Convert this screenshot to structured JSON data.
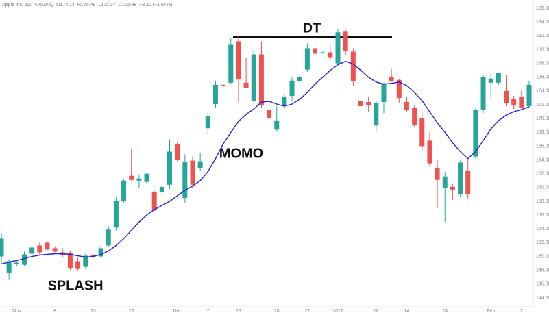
{
  "chart_data": {
    "type": "candlestick",
    "title": "Apple Inc, 1D, NASDAQ",
    "legend_values": [
      "O174.14",
      "H175.48",
      "L172.37",
      "C172.98",
      "−3.30 (−1.87%)"
    ],
    "annotations": [
      "DT",
      "MOMO",
      "SPLASH"
    ],
    "categories": [
      null,
      null,
      "Nov",
      null,
      null,
      null,
      null,
      "8",
      null,
      null,
      null,
      null,
      "15",
      null,
      null,
      null,
      null,
      "22",
      null,
      null,
      null,
      null,
      null,
      "Dec",
      null,
      null,
      null,
      "7",
      null,
      null,
      null,
      "13",
      null,
      null,
      null,
      null,
      "20",
      null,
      null,
      null,
      "27",
      null,
      null,
      null,
      "2022",
      null,
      null,
      null,
      null,
      "10",
      null,
      null,
      null,
      "14",
      null,
      null,
      null,
      null,
      "24",
      null,
      null,
      null,
      null,
      null,
      "Feb",
      null,
      null,
      null,
      "7",
      null
    ],
    "up_color": "#26a69a",
    "down_color": "#ef5350",
    "open": [
      150.0,
      147.6,
      148.9,
      148.8,
      150.4,
      151.6,
      152.0,
      151.2,
      150.6,
      150.5,
      149.3,
      148.5,
      150.2,
      150.0,
      151.6,
      154.2,
      158.0,
      161.7,
      161.0,
      160.8,
      159.3,
      159.3,
      160.4,
      166.3,
      158.5,
      163.9,
      162.8,
      168.6,
      172.1,
      174.9,
      175.2,
      181.2,
      175.2,
      172.6,
      179.3,
      171.3,
      168.4,
      172.0,
      173.3,
      175.4,
      177.1,
      180.2,
      179.5,
      179.6,
      178.0,
      182.6,
      179.7,
      172.6,
      172.4,
      169.0,
      172.4,
      176.0,
      175.6,
      172.4,
      171.6,
      170.1,
      166.8,
      162.8,
      159.9,
      160.1,
      159.0,
      162.4,
      164.5,
      171.3,
      175.2,
      175.2,
      174.0,
      172.8,
      173.2,
      171.8
    ],
    "high": [
      153.4,
      149.6,
      149.4,
      150.7,
      151.8,
      152.0,
      152.2,
      151.5,
      151.2,
      150.8,
      149.8,
      150.4,
      150.4,
      151.5,
      154.4,
      158.7,
      161.2,
      165.5,
      161.9,
      162.1,
      159.5,
      160.3,
      167.0,
      166.6,
      164.8,
      164.5,
      165.0,
      171.0,
      175.5,
      175.4,
      181.7,
      181.9,
      178.8,
      180.0,
      181.2,
      172.3,
      171.8,
      173.6,
      176.0,
      176.2,
      180.9,
      181.6,
      179.7,
      180.5,
      183.0,
      182.9,
      180.2,
      174.5,
      173.2,
      172.5,
      175.2,
      177.2,
      175.8,
      173.1,
      172.0,
      171.0,
      168.0,
      164.0,
      162.3,
      160.6,
      163.9,
      164.2,
      171.5,
      176.3,
      176.5,
      176.6,
      176.3,
      173.3,
      174.1,
      175.5
    ],
    "low": [
      149.0,
      146.6,
      148.6,
      148.6,
      149.9,
      150.3,
      150.8,
      150.6,
      149.9,
      148.0,
      147.9,
      148.2,
      149.7,
      149.8,
      151.4,
      153.8,
      157.7,
      161.0,
      159.9,
      160.5,
      156.6,
      158.9,
      159.8,
      163.8,
      157.8,
      159.8,
      162.4,
      167.8,
      171.5,
      174.4,
      175.0,
      172.3,
      174.4,
      172.0,
      171.6,
      170.0,
      168.1,
      171.4,
      172.6,
      175.2,
      176.8,
      179.1,
      179.4,
      178.5,
      177.7,
      179.2,
      174.7,
      171.8,
      171.0,
      168.2,
      170.8,
      175.3,
      172.2,
      171.0,
      168.8,
      165.2,
      163.0,
      157.0,
      155.0,
      158.2,
      158.6,
      158.3,
      164.2,
      170.8,
      172.8,
      174.9,
      171.8,
      171.4,
      171.6,
      171.6
    ],
    "close": [
      152.6,
      149.3,
      149.1,
      150.3,
      151.3,
      150.6,
      151.0,
      150.7,
      150.2,
      148.3,
      148.2,
      150.1,
      149.9,
      151.2,
      153.9,
      158.0,
      161.0,
      161.1,
      161.3,
      162.0,
      156.8,
      160.1,
      165.2,
      164.0,
      163.7,
      160.4,
      163.8,
      170.4,
      174.9,
      174.7,
      180.8,
      175.7,
      174.4,
      179.3,
      172.0,
      170.1,
      169.7,
      173.2,
      175.5,
      176.0,
      180.2,
      179.4,
      179.6,
      178.9,
      182.5,
      179.8,
      175.4,
      171.8,
      171.9,
      172.3,
      175.1,
      175.4,
      173.0,
      171.2,
      169.1,
      166.0,
      163.5,
      161.1,
      161.6,
      159.7,
      163.6,
      159.0,
      171.3,
      176.0,
      175.8,
      176.6,
      172.3,
      172.0,
      171.6,
      174.9
    ],
    "series": [
      {
        "color": "#1f1fe0",
        "values": [
          148.9,
          149.2,
          149.4,
          149.7,
          150.0,
          150.2,
          150.3,
          150.4,
          150.4,
          150.3,
          150.1,
          149.9,
          150.0,
          150.3,
          150.8,
          151.6,
          152.6,
          153.8,
          155.0,
          156.0,
          156.8,
          157.4,
          158.0,
          158.8,
          159.6,
          160.2,
          161.0,
          162.3,
          164.2,
          166.3,
          168.0,
          169.6,
          170.6,
          171.4,
          172.4,
          172.5,
          172.1,
          171.8,
          172.1,
          172.8,
          173.8,
          175.0,
          176.0,
          177.0,
          177.8,
          178.3,
          177.9,
          177.0,
          176.0,
          175.3,
          175.0,
          175.1,
          175.3,
          174.8,
          173.8,
          172.6,
          171.0,
          169.4,
          168.0,
          166.5,
          165.2,
          164.2,
          165.2,
          166.8,
          168.5,
          169.7,
          170.5,
          171.0,
          171.3,
          171.7
        ]
      }
    ],
    "ylim": [
      142.7,
      187.2
    ],
    "yticks": [
      {
        "value": 144,
        "label": "144.00"
      },
      {
        "value": 146,
        "label": "146.00"
      },
      {
        "value": 148,
        "label": "148.00"
      },
      {
        "value": 150,
        "label": "150.00"
      },
      {
        "value": 152,
        "label": "152.00"
      },
      {
        "value": 154,
        "label": "154.00"
      },
      {
        "value": 156,
        "label": "156.00"
      },
      {
        "value": 158,
        "label": "158.00"
      },
      {
        "value": 160,
        "label": "160.00"
      },
      {
        "value": 162,
        "label": "162.00"
      },
      {
        "value": 164,
        "label": "164.00"
      },
      {
        "value": 166,
        "label": "166.00"
      },
      {
        "value": 168,
        "label": "168.00"
      },
      {
        "value": 170,
        "label": "170.00"
      },
      {
        "value": 172,
        "label": "172.00"
      },
      {
        "value": 174,
        "label": "174.00"
      },
      {
        "value": 176,
        "label": "176.00"
      },
      {
        "value": 178,
        "label": "178.00"
      },
      {
        "value": 180,
        "label": "180.00"
      },
      {
        "value": 182,
        "label": "182.00"
      },
      {
        "value": 184,
        "label": "184.00"
      },
      {
        "value": 186,
        "label": "186.00"
      }
    ],
    "grid": false
  }
}
